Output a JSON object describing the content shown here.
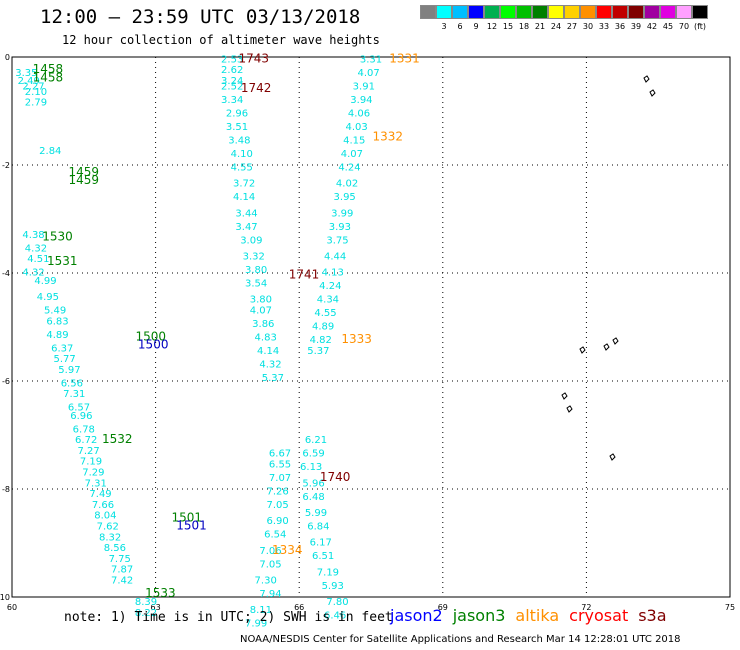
{
  "header": {
    "title": "12:00 — 23:59 UTC 03/13/2018",
    "subtitle": "12 hour collection of altimeter wave heights"
  },
  "colorbar": {
    "swatches": [
      {
        "label": "",
        "color": "#808080"
      },
      {
        "label": "3",
        "color": "#00ffff"
      },
      {
        "label": "6",
        "color": "#00bfff"
      },
      {
        "label": "9",
        "color": "#0000ff"
      },
      {
        "label": "12",
        "color": "#00b050"
      },
      {
        "label": "15",
        "color": "#00ff00"
      },
      {
        "label": "18",
        "color": "#00c000"
      },
      {
        "label": "21",
        "color": "#008000"
      },
      {
        "label": "24",
        "color": "#ffff00"
      },
      {
        "label": "27",
        "color": "#ffd000"
      },
      {
        "label": "30",
        "color": "#ff9000"
      },
      {
        "label": "33",
        "color": "#ff0000"
      },
      {
        "label": "36",
        "color": "#c00000"
      },
      {
        "label": "39",
        "color": "#800000"
      },
      {
        "label": "42",
        "color": "#a000a0"
      },
      {
        "label": "45",
        "color": "#e000e0"
      },
      {
        "label": "70",
        "color": "#ffa0ff"
      },
      {
        "label": "(ft)",
        "color": "#000000"
      }
    ]
  },
  "axes": {
    "x_ticks": [
      {
        "value": 60,
        "label": "60"
      },
      {
        "value": 63,
        "label": "63"
      },
      {
        "value": 66,
        "label": "66"
      },
      {
        "value": 69,
        "label": "69"
      },
      {
        "value": 72,
        "label": "72"
      },
      {
        "value": 75,
        "label": "75"
      }
    ],
    "y_ticks": [
      {
        "value": 0,
        "label": "0"
      },
      {
        "value": -2,
        "label": "-2"
      },
      {
        "value": -4,
        "label": "-4"
      },
      {
        "value": -6,
        "label": "-6"
      },
      {
        "value": -8,
        "label": "-8"
      },
      {
        "value": -10,
        "label": "-10"
      }
    ],
    "xlim": [
      60,
      75
    ],
    "ylim": [
      -10,
      0
    ]
  },
  "tracks": [
    {
      "name": "left-track-a",
      "color": "#00e0e0",
      "points": [
        {
          "lon": 60.3,
          "lat": -0.35,
          "text": "3.35"
        },
        {
          "lon": 60.35,
          "lat": -0.5,
          "text": "2.49"
        },
        {
          "lon": 60.45,
          "lat": -0.6,
          "text": "2.27"
        },
        {
          "lon": 60.5,
          "lat": -0.7,
          "text": "2.10"
        },
        {
          "lon": 60.5,
          "lat": -0.9,
          "text": "2.79"
        },
        {
          "lon": 60.8,
          "lat": -1.8,
          "text": "2.84"
        },
        {
          "lon": 60.45,
          "lat": -3.35,
          "text": "4.38"
        },
        {
          "lon": 60.5,
          "lat": -3.6,
          "text": "4.32"
        },
        {
          "lon": 60.55,
          "lat": -3.8,
          "text": "4.51"
        },
        {
          "lon": 60.45,
          "lat": -4.05,
          "text": "4.32"
        },
        {
          "lon": 60.7,
          "lat": -4.2,
          "text": "4.99"
        },
        {
          "lon": 60.75,
          "lat": -4.5,
          "text": "4.95"
        },
        {
          "lon": 60.9,
          "lat": -4.75,
          "text": "5.49"
        },
        {
          "lon": 60.95,
          "lat": -4.95,
          "text": "6.83"
        },
        {
          "lon": 60.95,
          "lat": -5.2,
          "text": "4.89"
        },
        {
          "lon": 61.05,
          "lat": -5.45,
          "text": "6.37"
        },
        {
          "lon": 61.1,
          "lat": -5.65,
          "text": "5.77"
        },
        {
          "lon": 61.2,
          "lat": -5.85,
          "text": "5.97"
        },
        {
          "lon": 61.25,
          "lat": -6.1,
          "text": "6.56"
        },
        {
          "lon": 61.3,
          "lat": -6.3,
          "text": "7.31"
        },
        {
          "lon": 61.4,
          "lat": -6.55,
          "text": "6.57"
        },
        {
          "lon": 61.45,
          "lat": -6.7,
          "text": "6.96"
        },
        {
          "lon": 61.5,
          "lat": -6.95,
          "text": "6.78"
        },
        {
          "lon": 61.55,
          "lat": -7.15,
          "text": "6.72"
        },
        {
          "lon": 61.6,
          "lat": -7.35,
          "text": "7.27"
        },
        {
          "lon": 61.65,
          "lat": -7.55,
          "text": "7.19"
        },
        {
          "lon": 61.7,
          "lat": -7.75,
          "text": "7.29"
        },
        {
          "lon": 61.75,
          "lat": -7.95,
          "text": "7.31"
        },
        {
          "lon": 61.85,
          "lat": -8.15,
          "text": "7.49"
        },
        {
          "lon": 61.9,
          "lat": -8.35,
          "text": "7.66"
        },
        {
          "lon": 61.95,
          "lat": -8.55,
          "text": "8.04"
        },
        {
          "lon": 62.0,
          "lat": -8.75,
          "text": "7.62"
        },
        {
          "lon": 62.05,
          "lat": -8.95,
          "text": "8.32"
        },
        {
          "lon": 62.15,
          "lat": -9.15,
          "text": "8.56"
        },
        {
          "lon": 62.25,
          "lat": -9.35,
          "text": "7.75"
        },
        {
          "lon": 62.3,
          "lat": -9.55,
          "text": "7.87"
        },
        {
          "lon": 62.3,
          "lat": -9.75,
          "text": "7.42"
        },
        {
          "lon": 62.8,
          "lat": -10.15,
          "text": "8.39"
        },
        {
          "lon": 62.8,
          "lat": -10.35,
          "text": "8.22"
        }
      ]
    },
    {
      "name": "mid-track",
      "color": "#00e0e0",
      "points": [
        {
          "lon": 64.6,
          "lat": -0.1,
          "text": "2.53"
        },
        {
          "lon": 64.6,
          "lat": -0.3,
          "text": "2.62"
        },
        {
          "lon": 64.6,
          "lat": -0.5,
          "text": "3.24"
        },
        {
          "lon": 64.6,
          "lat": -0.6,
          "text": "2.52"
        },
        {
          "lon": 64.6,
          "lat": -0.85,
          "text": "3.34"
        },
        {
          "lon": 64.7,
          "lat": -1.1,
          "text": "2.96"
        },
        {
          "lon": 64.7,
          "lat": -1.35,
          "text": "3.51"
        },
        {
          "lon": 64.75,
          "lat": -1.6,
          "text": "3.48"
        },
        {
          "lon": 64.8,
          "lat": -1.85,
          "text": "4.10"
        },
        {
          "lon": 64.8,
          "lat": -2.1,
          "text": "4.55"
        },
        {
          "lon": 64.85,
          "lat": -2.4,
          "text": "3.72"
        },
        {
          "lon": 64.85,
          "lat": -2.65,
          "text": "4.14"
        },
        {
          "lon": 64.9,
          "lat": -2.95,
          "text": "3.44"
        },
        {
          "lon": 64.9,
          "lat": -3.2,
          "text": "3.47"
        },
        {
          "lon": 65.0,
          "lat": -3.45,
          "text": "3.09"
        },
        {
          "lon": 65.05,
          "lat": -3.75,
          "text": "3.32"
        },
        {
          "lon": 65.1,
          "lat": -4.0,
          "text": "3.80"
        },
        {
          "lon": 65.1,
          "lat": -4.25,
          "text": "3.54"
        },
        {
          "lon": 65.2,
          "lat": -4.55,
          "text": "3.80"
        },
        {
          "lon": 65.2,
          "lat": -4.75,
          "text": "4.07"
        },
        {
          "lon": 65.25,
          "lat": -5.0,
          "text": "3.86"
        },
        {
          "lon": 65.3,
          "lat": -5.25,
          "text": "4.83"
        },
        {
          "lon": 65.35,
          "lat": -5.5,
          "text": "4.14"
        },
        {
          "lon": 65.4,
          "lat": -5.75,
          "text": "4.32"
        },
        {
          "lon": 65.45,
          "lat": -6.0,
          "text": "5.37"
        },
        {
          "lon": 65.6,
          "lat": -7.4,
          "text": "6.67"
        },
        {
          "lon": 65.6,
          "lat": -7.6,
          "text": "6.55"
        },
        {
          "lon": 65.6,
          "lat": -7.85,
          "text": "7.07"
        },
        {
          "lon": 65.55,
          "lat": -8.1,
          "text": "7.26"
        },
        {
          "lon": 65.55,
          "lat": -8.35,
          "text": "7.05"
        },
        {
          "lon": 65.55,
          "lat": -8.65,
          "text": "6.90"
        },
        {
          "lon": 65.5,
          "lat": -8.9,
          "text": "6.54"
        },
        {
          "lon": 65.4,
          "lat": -9.2,
          "text": "7.06"
        },
        {
          "lon": 65.4,
          "lat": -9.45,
          "text": "7.05"
        },
        {
          "lon": 65.3,
          "lat": -9.75,
          "text": "7.30"
        },
        {
          "lon": 65.4,
          "lat": -10.0,
          "text": "7.94"
        },
        {
          "lon": 65.2,
          "lat": -10.3,
          "text": "8.11"
        },
        {
          "lon": 65.1,
          "lat": -10.55,
          "text": "7.99"
        }
      ]
    },
    {
      "name": "right-track",
      "color": "#00e0e0",
      "points": [
        {
          "lon": 67.5,
          "lat": -0.1,
          "text": "3.31"
        },
        {
          "lon": 67.45,
          "lat": -0.35,
          "text": "4.07"
        },
        {
          "lon": 67.35,
          "lat": -0.6,
          "text": "3.91"
        },
        {
          "lon": 67.3,
          "lat": -0.85,
          "text": "3.94"
        },
        {
          "lon": 67.25,
          "lat": -1.1,
          "text": "4.06"
        },
        {
          "lon": 67.2,
          "lat": -1.35,
          "text": "4.03"
        },
        {
          "lon": 67.15,
          "lat": -1.6,
          "text": "4.15"
        },
        {
          "lon": 67.1,
          "lat": -1.85,
          "text": "4.07"
        },
        {
          "lon": 67.05,
          "lat": -2.1,
          "text": "4.24"
        },
        {
          "lon": 67.0,
          "lat": -2.4,
          "text": "4.02"
        },
        {
          "lon": 66.95,
          "lat": -2.65,
          "text": "3.95"
        },
        {
          "lon": 66.9,
          "lat": -2.95,
          "text": "3.99"
        },
        {
          "lon": 66.85,
          "lat": -3.2,
          "text": "3.93"
        },
        {
          "lon": 66.8,
          "lat": -3.45,
          "text": "3.75"
        },
        {
          "lon": 66.75,
          "lat": -3.75,
          "text": "4.44"
        },
        {
          "lon": 66.7,
          "lat": -4.05,
          "text": "4.13"
        },
        {
          "lon": 66.65,
          "lat": -4.3,
          "text": "4.24"
        },
        {
          "lon": 66.6,
          "lat": -4.55,
          "text": "4.34"
        },
        {
          "lon": 66.55,
          "lat": -4.8,
          "text": "4.55"
        },
        {
          "lon": 66.5,
          "lat": -5.05,
          "text": "4.89"
        },
        {
          "lon": 66.45,
          "lat": -5.3,
          "text": "4.82"
        },
        {
          "lon": 66.4,
          "lat": -5.5,
          "text": "5.37"
        },
        {
          "lon": 66.35,
          "lat": -7.15,
          "text": "6.21"
        },
        {
          "lon": 66.3,
          "lat": -7.4,
          "text": "6.59"
        },
        {
          "lon": 66.25,
          "lat": -7.65,
          "text": "6.13"
        },
        {
          "lon": 66.3,
          "lat": -7.95,
          "text": "5.96"
        },
        {
          "lon": 66.3,
          "lat": -8.2,
          "text": "6.48"
        },
        {
          "lon": 66.35,
          "lat": -8.5,
          "text": "5.99"
        },
        {
          "lon": 66.4,
          "lat": -8.75,
          "text": "6.84"
        },
        {
          "lon": 66.45,
          "lat": -9.05,
          "text": "6.17"
        },
        {
          "lon": 66.5,
          "lat": -9.3,
          "text": "6.51"
        },
        {
          "lon": 66.6,
          "lat": -9.6,
          "text": "7.19"
        },
        {
          "lon": 66.7,
          "lat": -9.85,
          "text": "5.93"
        },
        {
          "lon": 66.8,
          "lat": -10.15,
          "text": "7.80"
        },
        {
          "lon": 66.75,
          "lat": -10.4,
          "text": "6.46"
        }
      ]
    }
  ],
  "time_labels": [
    {
      "text": "1458",
      "lon": 60.75,
      "lat": -0.3,
      "color": "#008000"
    },
    {
      "text": "1458",
      "lon": 60.75,
      "lat": -0.45,
      "color": "#008000"
    },
    {
      "text": "1459",
      "lon": 61.5,
      "lat": -2.2,
      "color": "#008000"
    },
    {
      "text": "1459",
      "lon": 61.5,
      "lat": -2.35,
      "color": "#008000"
    },
    {
      "text": "1530",
      "lon": 60.95,
      "lat": -3.4,
      "color": "#008000"
    },
    {
      "text": "1531",
      "lon": 61.05,
      "lat": -3.85,
      "color": "#008000"
    },
    {
      "text": "1532",
      "lon": 62.2,
      "lat": -7.15,
      "color": "#008000"
    },
    {
      "text": "1533",
      "lon": 63.1,
      "lat": -10.0,
      "color": "#008000"
    },
    {
      "text": "1500",
      "lon": 62.9,
      "lat": -5.25,
      "color": "#008000"
    },
    {
      "text": "1500",
      "lon": 62.95,
      "lat": -5.4,
      "color": "#0000c0"
    },
    {
      "text": "1501",
      "lon": 63.65,
      "lat": -8.6,
      "color": "#008000"
    },
    {
      "text": "1501",
      "lon": 63.75,
      "lat": -8.75,
      "color": "#0000c0"
    },
    {
      "text": "1743",
      "lon": 65.05,
      "lat": -0.1,
      "color": "#800000"
    },
    {
      "text": "1742",
      "lon": 65.1,
      "lat": -0.65,
      "color": "#800000"
    },
    {
      "text": "1741",
      "lon": 66.1,
      "lat": -4.1,
      "color": "#800000"
    },
    {
      "text": "1740",
      "lon": 66.75,
      "lat": -7.85,
      "color": "#800000"
    },
    {
      "text": "1331",
      "lon": 68.2,
      "lat": -0.1,
      "color": "#ff9000"
    },
    {
      "text": "1332",
      "lon": 67.85,
      "lat": -1.55,
      "color": "#ff9000"
    },
    {
      "text": "1333",
      "lon": 67.2,
      "lat": -5.3,
      "color": "#ff9000"
    },
    {
      "text": "1334",
      "lon": 65.75,
      "lat": -9.2,
      "color": "#ff9000"
    }
  ],
  "note": "note:  1) Time is in UTC;  2) SWH is in feet",
  "satellites": [
    {
      "name": "jason2",
      "color": "#0000ff"
    },
    {
      "name": "jason3",
      "color": "#008000"
    },
    {
      "name": "altika",
      "color": "#ff9000"
    },
    {
      "name": "cryosat",
      "color": "#ff0000"
    },
    {
      "name": "s3a",
      "color": "#800000"
    }
  ],
  "credit": "NOAA/NESDIS Center for Satellite Applications and Research    Mar 14 12:28:01 UTC 2018"
}
